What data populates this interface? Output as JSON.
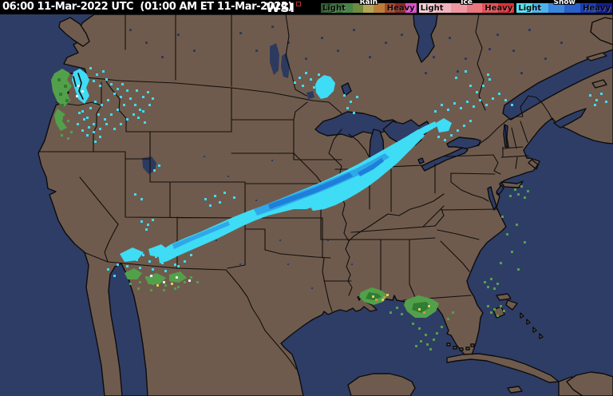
{
  "header": {
    "timestamp": "06:00 11-Mar-2022 UTC  (01:00 AM ET 11-Mar-2022)",
    "logo": "WSI",
    "legend": {
      "groups": [
        {
          "name": "Rain",
          "light": "Light",
          "heavy": "Heavy",
          "colors": [
            "#2e5c2e",
            "#3a703a",
            "#478447",
            "#6e8b3e",
            "#b4a455",
            "#bc7d38",
            "#a34a2c",
            "#8e2723",
            "#dc4fca"
          ]
        },
        {
          "name": "Ice",
          "light": "Light",
          "heavy": "Heavy",
          "colors": [
            "#f7cfd6",
            "#f3b3bc",
            "#ef97a1",
            "#ea7680",
            "#e35159",
            "#da3138"
          ]
        },
        {
          "name": "Snow",
          "light": "Light",
          "heavy": "Heavy",
          "colors": [
            "#54e1f3",
            "#4cb2ec",
            "#3a86dc",
            "#2a60ca",
            "#1c3db2",
            "#111e95"
          ]
        }
      ]
    }
  },
  "map": {
    "colors": {
      "ocean": "#2e3d66",
      "land": "#6f5b4d",
      "outline": "#0c0c0c",
      "lake_soft": "#2c3a5e",
      "snow_light": "#3fdcf5",
      "snow_mid": "#2fa8ea",
      "snow_deep": "#1d7fd9",
      "rain_light": "#53a04b",
      "rain_dark": "#2f7c35",
      "rain_yellow": "#d8cf57",
      "rain_orange": "#de9038",
      "mix_white": "#ececec"
    }
  }
}
